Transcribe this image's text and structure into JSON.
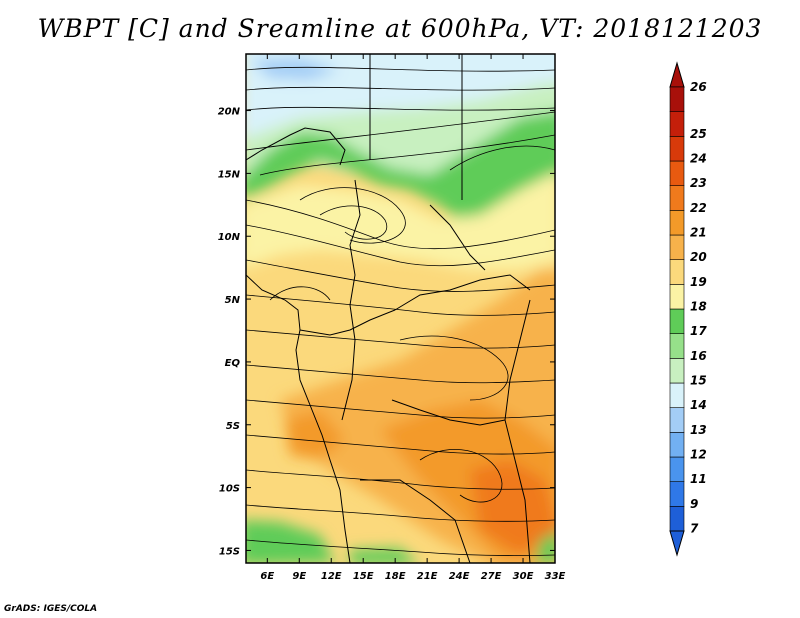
{
  "title": "WBPT [C] and Sreamline at 600hPa, VT: 2018121203",
  "credit": "GrADS: IGES/COLA",
  "map": {
    "lon_ticks": [
      "6E",
      "9E",
      "12E",
      "15E",
      "18E",
      "21E",
      "24E",
      "27E",
      "30E",
      "33E"
    ],
    "lat_ticks": [
      "20N",
      "15N",
      "10N",
      "5N",
      "EQ",
      "5S",
      "10S",
      "15S"
    ],
    "lon_range": [
      4,
      33
    ],
    "lat_range": [
      -16,
      24.5
    ]
  },
  "colorbar": {
    "labels": [
      "7",
      "9",
      "11",
      "12",
      "13",
      "14",
      "15",
      "16",
      "17",
      "18",
      "19",
      "20",
      "21",
      "22",
      "23",
      "24",
      "25",
      "26"
    ],
    "colors": [
      "#1e5fd8",
      "#2f78e8",
      "#4a94ee",
      "#72b0f2",
      "#a3cdf6",
      "#d9f2fa",
      "#c8f0c0",
      "#96e08a",
      "#5fcc58",
      "#fbf3a5",
      "#fbd97c",
      "#f7b24b",
      "#f39a29",
      "#f07a1c",
      "#e85a10",
      "#d83a0a",
      "#c41f0a",
      "#a8100a"
    ]
  }
}
